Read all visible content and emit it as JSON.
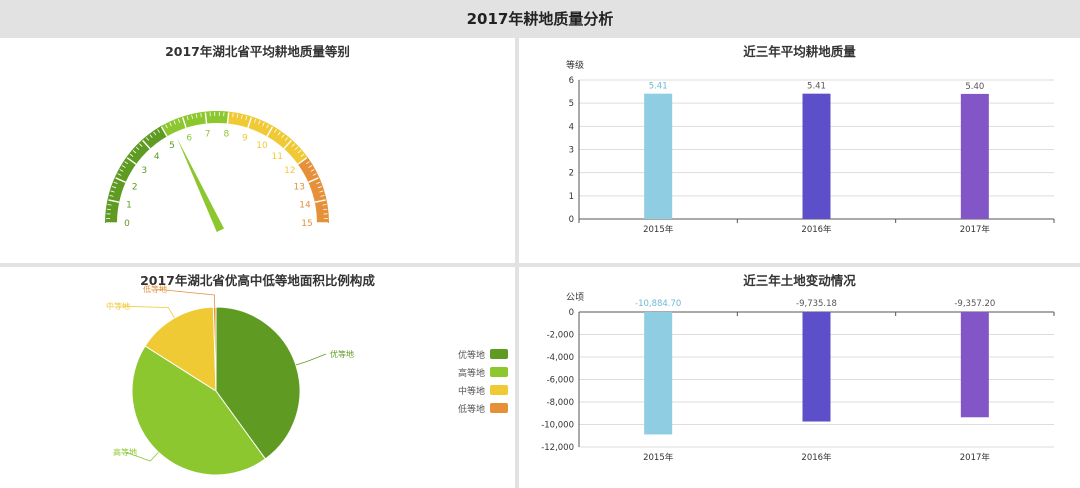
{
  "header": {
    "title": "2017年耕地质量分析"
  },
  "colors": {
    "bar_series": [
      "#8fcde3",
      "#5c4fc9",
      "#8356c7"
    ],
    "quality": [
      "#5f9b23",
      "#8cc730",
      "#f0ca35",
      "#e6903a"
    ],
    "axis": "#555555",
    "grid": "#dddddd"
  },
  "chart_data": [
    {
      "type": "gauge",
      "title": "2017年湖北省平均耕地质量等别",
      "min": 0,
      "max": 15,
      "value": 5.4,
      "tick_labels": [
        "0",
        "1",
        "2",
        "3",
        "4",
        "5",
        "6",
        "7",
        "8",
        "9",
        "10",
        "11",
        "12",
        "13",
        "14",
        "15"
      ],
      "bands": [
        {
          "to": 5,
          "color": "#5f9b23"
        },
        {
          "to": 8,
          "color": "#8cc730"
        },
        {
          "to": 12,
          "color": "#f0ca35"
        },
        {
          "to": 15,
          "color": "#e6903a"
        }
      ]
    },
    {
      "type": "bar",
      "title": "近三年平均耕地质量",
      "ylabel": "等级",
      "categories": [
        "2015年",
        "2016年",
        "2017年"
      ],
      "values": [
        5.41,
        5.41,
        5.4
      ],
      "value_labels": [
        "5.41",
        "5.41",
        "5.40"
      ],
      "ylim": [
        0,
        6
      ],
      "yticks": [
        0,
        1,
        2,
        3,
        4,
        5,
        6
      ],
      "ytick_labels": [
        "0",
        "1",
        "2",
        "3",
        "4",
        "5",
        "6"
      ],
      "grid": true
    },
    {
      "type": "pie",
      "title": "2017年湖北省优高中低等地面积比例构成",
      "labels": [
        "优等地",
        "高等地",
        "中等地",
        "低等地"
      ],
      "values": [
        40,
        44,
        15.5,
        0.5
      ],
      "legend": "right"
    },
    {
      "type": "bar",
      "title": "近三年土地变动情况",
      "ylabel": "公顷",
      "categories": [
        "2015年",
        "2016年",
        "2017年"
      ],
      "values": [
        -10884.7,
        -9735.18,
        -9357.2
      ],
      "value_labels": [
        "-10,884.70",
        "-9,735.18",
        "-9,357.20"
      ],
      "ylim": [
        -12000,
        0
      ],
      "yticks": [
        0,
        -2000,
        -4000,
        -6000,
        -8000,
        -10000,
        -12000
      ],
      "ytick_labels": [
        "0",
        "-2,000",
        "-4,000",
        "-6,000",
        "-8,000",
        "-10,000",
        "-12,000"
      ],
      "grid": true
    }
  ]
}
